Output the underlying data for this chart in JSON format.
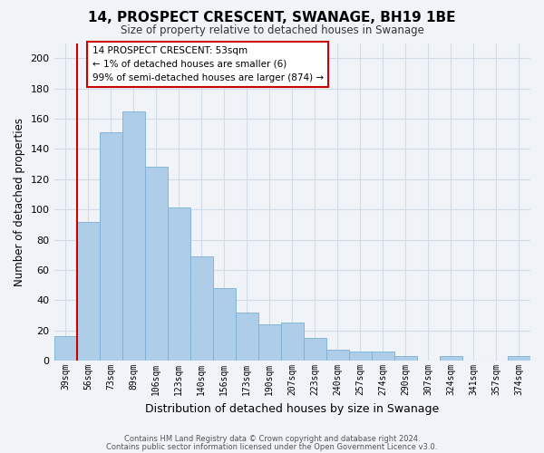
{
  "title": "14, PROSPECT CRESCENT, SWANAGE, BH19 1BE",
  "subtitle": "Size of property relative to detached houses in Swanage",
  "xlabel": "Distribution of detached houses by size in Swanage",
  "ylabel": "Number of detached properties",
  "bar_labels": [
    "39sqm",
    "56sqm",
    "73sqm",
    "89sqm",
    "106sqm",
    "123sqm",
    "140sqm",
    "156sqm",
    "173sqm",
    "190sqm",
    "207sqm",
    "223sqm",
    "240sqm",
    "257sqm",
    "274sqm",
    "290sqm",
    "307sqm",
    "324sqm",
    "341sqm",
    "357sqm",
    "374sqm"
  ],
  "bar_values": [
    16,
    92,
    151,
    165,
    128,
    101,
    69,
    48,
    32,
    24,
    25,
    15,
    7,
    6,
    6,
    3,
    0,
    3,
    0,
    0,
    3
  ],
  "bar_color": "#aecde8",
  "bar_edge_color": "#7bafd4",
  "highlight_edge_color": "#cc0000",
  "ylim": [
    0,
    210
  ],
  "yticks": [
    0,
    20,
    40,
    60,
    80,
    100,
    120,
    140,
    160,
    180,
    200
  ],
  "annotation_title": "14 PROSPECT CRESCENT: 53sqm",
  "annotation_line1": "← 1% of detached houses are smaller (6)",
  "annotation_line2": "99% of semi-detached houses are larger (874) →",
  "footer_line1": "Contains HM Land Registry data © Crown copyright and database right 2024.",
  "footer_line2": "Contains public sector information licensed under the Open Government Licence v3.0.",
  "grid_color": "#d0dce8",
  "background_color": "#f0f4f8"
}
